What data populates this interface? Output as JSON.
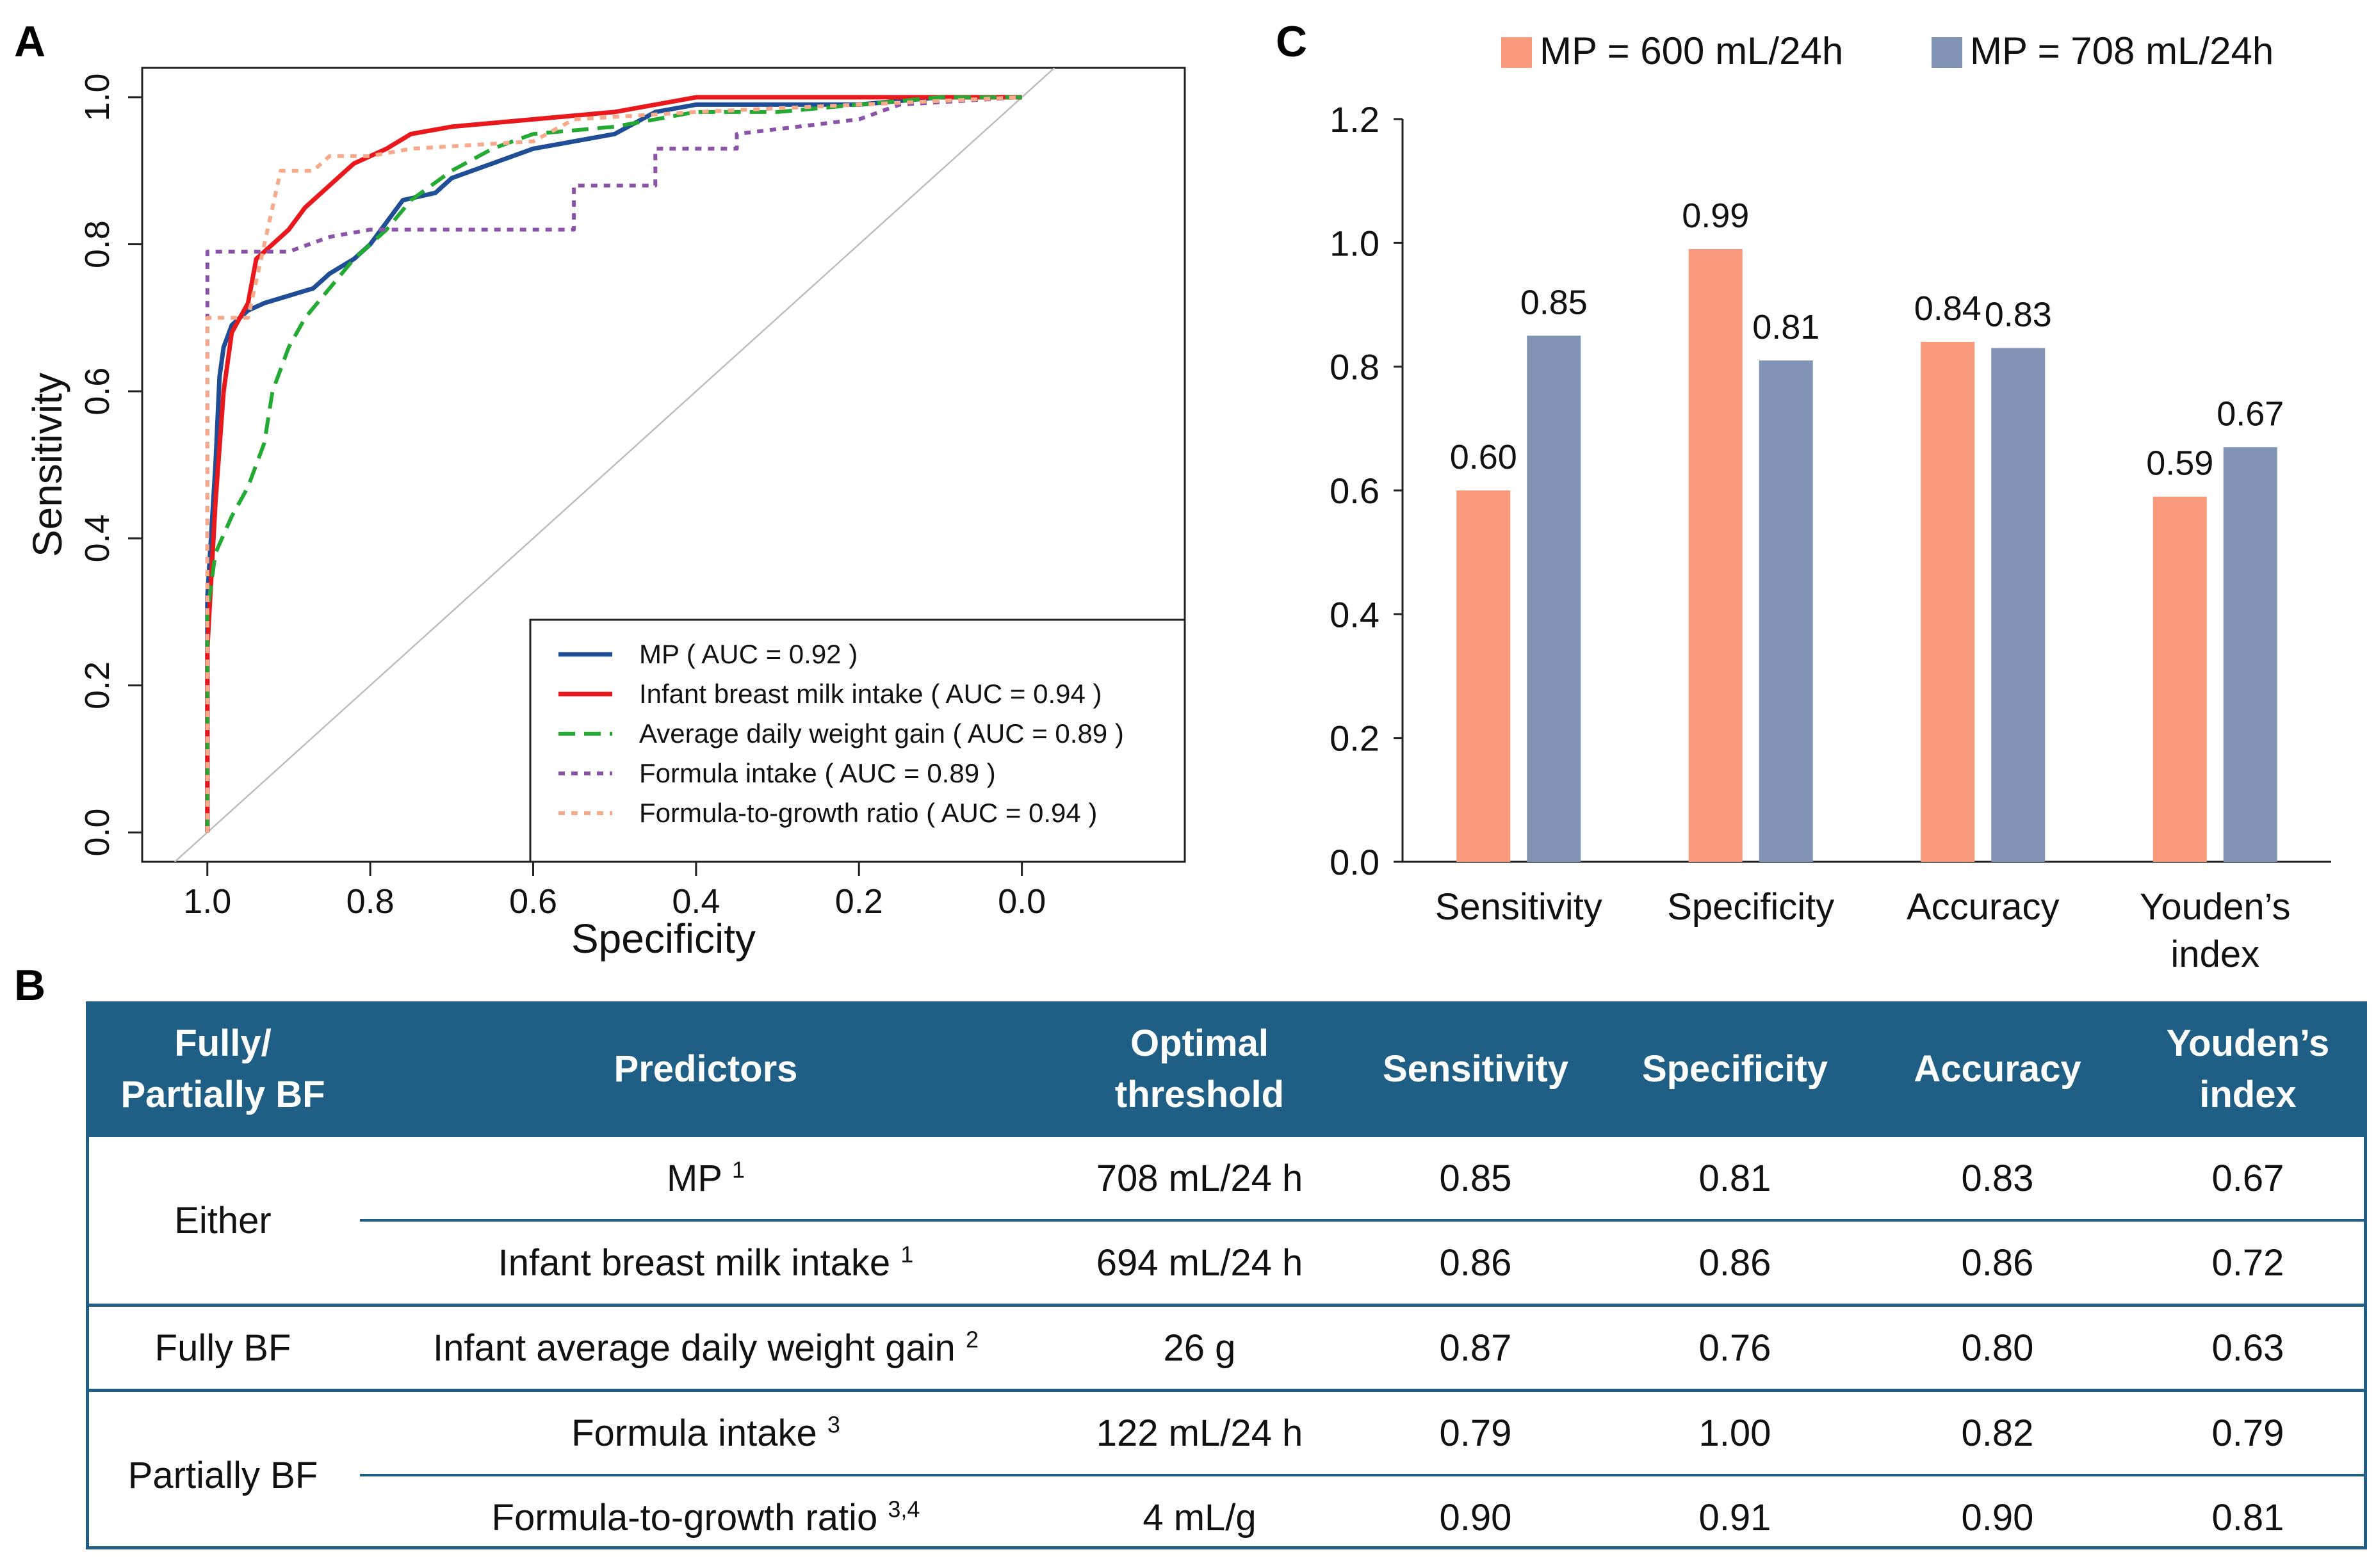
{
  "panels": {
    "a": "A",
    "b": "B",
    "c": "C"
  },
  "chart_data": [
    {
      "type": "line",
      "panel": "A",
      "xlabel": "Specificity",
      "ylabel": "Sensitivity",
      "xlim": [
        1.08,
        -0.2
      ],
      "ylim": [
        -0.04,
        1.04
      ],
      "x_ticks": [
        "1.0",
        "0.8",
        "0.6",
        "0.4",
        "0.2",
        "0.0"
      ],
      "y_ticks": [
        "0.0",
        "0.2",
        "0.4",
        "0.6",
        "0.8",
        "1.0"
      ],
      "x_tick_values": [
        1.0,
        0.8,
        0.6,
        0.4,
        0.2,
        0.0
      ],
      "y_tick_values": [
        0.0,
        0.2,
        0.4,
        0.6,
        0.8,
        1.0
      ],
      "diagonal": [
        [
          1.0,
          0.0
        ],
        [
          0.0,
          1.0
        ]
      ],
      "legend_position": "bottom-right",
      "series": [
        {
          "name": "MP ( AUC = 0.92 )",
          "color": "#1f4e96",
          "dash": "solid",
          "points": [
            [
              1.0,
              0.0
            ],
            [
              1.0,
              0.32
            ],
            [
              0.99,
              0.5
            ],
            [
              0.985,
              0.62
            ],
            [
              0.98,
              0.66
            ],
            [
              0.97,
              0.69
            ],
            [
              0.95,
              0.71
            ],
            [
              0.93,
              0.72
            ],
            [
              0.9,
              0.73
            ],
            [
              0.87,
              0.74
            ],
            [
              0.85,
              0.76
            ],
            [
              0.82,
              0.78
            ],
            [
              0.8,
              0.8
            ],
            [
              0.78,
              0.83
            ],
            [
              0.76,
              0.86
            ],
            [
              0.72,
              0.87
            ],
            [
              0.7,
              0.89
            ],
            [
              0.65,
              0.91
            ],
            [
              0.6,
              0.93
            ],
            [
              0.55,
              0.94
            ],
            [
              0.5,
              0.95
            ],
            [
              0.45,
              0.98
            ],
            [
              0.4,
              0.99
            ],
            [
              0.3,
              0.99
            ],
            [
              0.2,
              0.99
            ],
            [
              0.1,
              1.0
            ],
            [
              0.0,
              1.0
            ]
          ]
        },
        {
          "name": "Infant breast milk intake ( AUC = 0.94 )",
          "color": "#e8181c",
          "dash": "solid",
          "points": [
            [
              1.0,
              0.0
            ],
            [
              1.0,
              0.25
            ],
            [
              0.99,
              0.45
            ],
            [
              0.98,
              0.6
            ],
            [
              0.97,
              0.68
            ],
            [
              0.95,
              0.72
            ],
            [
              0.94,
              0.78
            ],
            [
              0.92,
              0.8
            ],
            [
              0.9,
              0.82
            ],
            [
              0.88,
              0.85
            ],
            [
              0.85,
              0.88
            ],
            [
              0.82,
              0.91
            ],
            [
              0.78,
              0.93
            ],
            [
              0.75,
              0.95
            ],
            [
              0.7,
              0.96
            ],
            [
              0.6,
              0.97
            ],
            [
              0.5,
              0.98
            ],
            [
              0.45,
              0.99
            ],
            [
              0.4,
              1.0
            ],
            [
              0.2,
              1.0
            ],
            [
              0.0,
              1.0
            ]
          ]
        },
        {
          "name": "Average daily weight gain ( AUC = 0.89 )",
          "color": "#22aa33",
          "dash": "dashed",
          "points": [
            [
              1.0,
              0.0
            ],
            [
              1.0,
              0.3
            ],
            [
              0.99,
              0.38
            ],
            [
              0.97,
              0.43
            ],
            [
              0.95,
              0.47
            ],
            [
              0.93,
              0.53
            ],
            [
              0.92,
              0.6
            ],
            [
              0.9,
              0.66
            ],
            [
              0.88,
              0.7
            ],
            [
              0.85,
              0.74
            ],
            [
              0.82,
              0.78
            ],
            [
              0.78,
              0.82
            ],
            [
              0.75,
              0.86
            ],
            [
              0.7,
              0.9
            ],
            [
              0.65,
              0.93
            ],
            [
              0.6,
              0.95
            ],
            [
              0.5,
              0.96
            ],
            [
              0.45,
              0.97
            ],
            [
              0.4,
              0.98
            ],
            [
              0.3,
              0.98
            ],
            [
              0.2,
              0.99
            ],
            [
              0.1,
              1.0
            ],
            [
              0.0,
              1.0
            ]
          ]
        },
        {
          "name": "Formula intake ( AUC = 0.89 )",
          "color": "#8a52a8",
          "dash": "dotted",
          "points": [
            [
              1.0,
              0.0
            ],
            [
              1.0,
              0.79
            ],
            [
              0.9,
              0.79
            ],
            [
              0.85,
              0.81
            ],
            [
              0.8,
              0.82
            ],
            [
              0.7,
              0.82
            ],
            [
              0.55,
              0.82
            ],
            [
              0.55,
              0.88
            ],
            [
              0.45,
              0.88
            ],
            [
              0.45,
              0.93
            ],
            [
              0.35,
              0.93
            ],
            [
              0.35,
              0.95
            ],
            [
              0.2,
              0.97
            ],
            [
              0.15,
              0.99
            ],
            [
              0.0,
              1.0
            ]
          ]
        },
        {
          "name": "Formula-to-growth ratio ( AUC = 0.94 )",
          "color": "#f7a98a",
          "dash": "dotted",
          "points": [
            [
              1.0,
              0.0
            ],
            [
              1.0,
              0.7
            ],
            [
              0.95,
              0.7
            ],
            [
              0.91,
              0.9
            ],
            [
              0.87,
              0.9
            ],
            [
              0.85,
              0.92
            ],
            [
              0.8,
              0.92
            ],
            [
              0.75,
              0.93
            ],
            [
              0.6,
              0.94
            ],
            [
              0.55,
              0.97
            ],
            [
              0.4,
              0.98
            ],
            [
              0.2,
              0.99
            ],
            [
              0.0,
              1.0
            ]
          ]
        }
      ]
    },
    {
      "type": "bar",
      "panel": "C",
      "categories": [
        "Sensitivity",
        "Specificity",
        "Accuracy",
        "Youden’s index"
      ],
      "category_lines": [
        [
          "Sensitivity"
        ],
        [
          "Specificity"
        ],
        [
          "Accuracy"
        ],
        [
          "Youden’s",
          "index"
        ]
      ],
      "ylim": [
        0.0,
        1.2
      ],
      "y_ticks": [
        "0.0",
        "0.2",
        "0.4",
        "0.6",
        "0.8",
        "1.0",
        "1.2"
      ],
      "y_tick_values": [
        0.0,
        0.2,
        0.4,
        0.6,
        0.8,
        1.0,
        1.2
      ],
      "legend_position": "top",
      "series": [
        {
          "name": "MP = 600 mL/24h",
          "color": "#fa9a7c",
          "values": [
            0.6,
            0.99,
            0.84,
            0.59
          ],
          "labels": [
            "0.60",
            "0.99",
            "0.84",
            "0.59"
          ]
        },
        {
          "name": "MP = 708 mL/24h",
          "color": "#8294b6",
          "values": [
            0.85,
            0.81,
            0.83,
            0.67
          ],
          "labels": [
            "0.85",
            "0.81",
            "0.83",
            "0.67"
          ]
        }
      ]
    }
  ],
  "table": {
    "headers": {
      "group": [
        "Fully/",
        "Partially BF"
      ],
      "predictors": "Predictors",
      "threshold": [
        "Optimal",
        "threshold"
      ],
      "sensitivity": "Sensitivity",
      "specificity": "Specificity",
      "accuracy": "Accuracy",
      "youden": [
        "Youden’s",
        "index"
      ]
    },
    "groups": [
      "Either",
      "Fully BF",
      "Partially BF"
    ],
    "rows": [
      {
        "predictor": "MP",
        "note": "1",
        "threshold": "708 mL/24 h",
        "sensitivity": "0.85",
        "specificity": "0.81",
        "accuracy": "0.83",
        "youden": "0.67"
      },
      {
        "predictor": "Infant breast milk intake",
        "note": "1",
        "threshold": "694 mL/24 h",
        "sensitivity": "0.86",
        "specificity": "0.86",
        "accuracy": "0.86",
        "youden": "0.72"
      },
      {
        "predictor": "Infant average daily weight gain",
        "note": "2",
        "threshold": "26 g",
        "sensitivity": "0.87",
        "specificity": "0.76",
        "accuracy": "0.80",
        "youden": "0.63"
      },
      {
        "predictor": "Formula intake",
        "note": "3",
        "threshold": "122 mL/24 h",
        "sensitivity": "0.79",
        "specificity": "1.00",
        "accuracy": "0.82",
        "youden": "0.79"
      },
      {
        "predictor": "Formula-to-growth ratio",
        "note": "3,4",
        "threshold": "4 mL/g",
        "sensitivity": "0.90",
        "specificity": "0.91",
        "accuracy": "0.90",
        "youden": "0.81"
      }
    ]
  }
}
